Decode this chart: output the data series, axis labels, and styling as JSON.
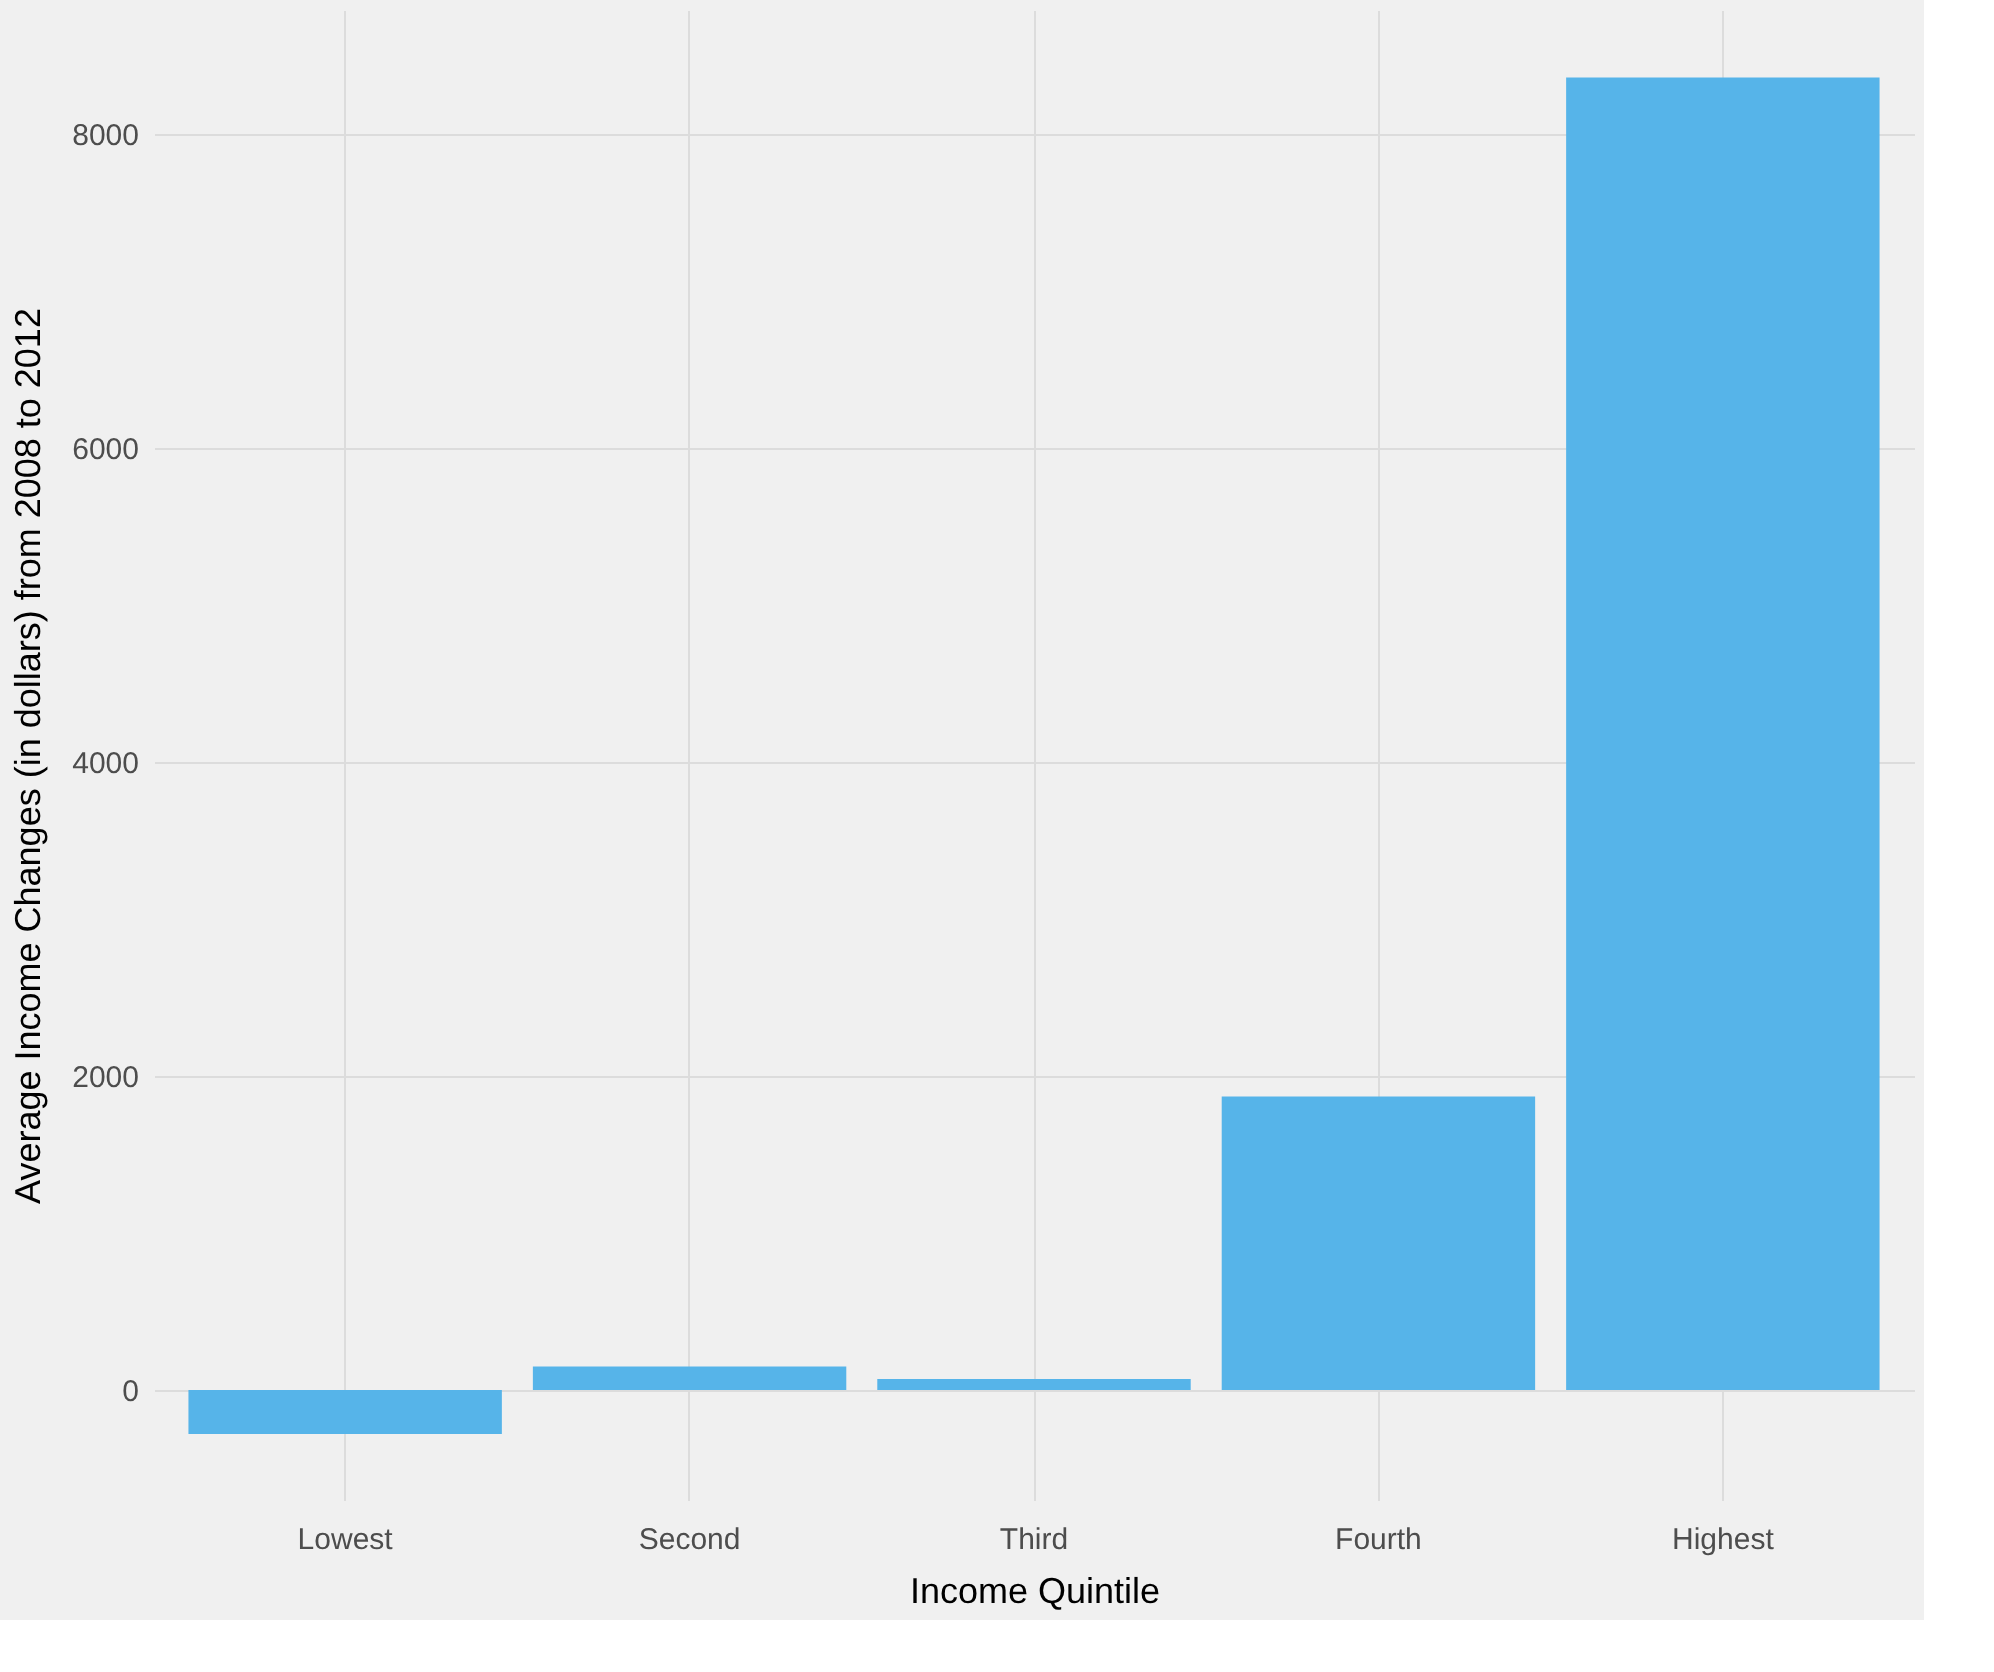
{
  "chart_data": {
    "type": "bar",
    "categories": [
      "Lowest",
      "Second",
      "Third",
      "Fourth",
      "Highest"
    ],
    "values": [
      -280,
      150,
      70,
      1870,
      8360
    ],
    "color": "#56b4e9",
    "xlabel": "Income Quintile",
    "ylabel": "Average Income Changes (in dollars) from 2008 to 2012",
    "ylim": [
      -700,
      8790
    ],
    "yticks": [
      0,
      2000,
      4000,
      6000,
      8000
    ],
    "grid": true
  }
}
